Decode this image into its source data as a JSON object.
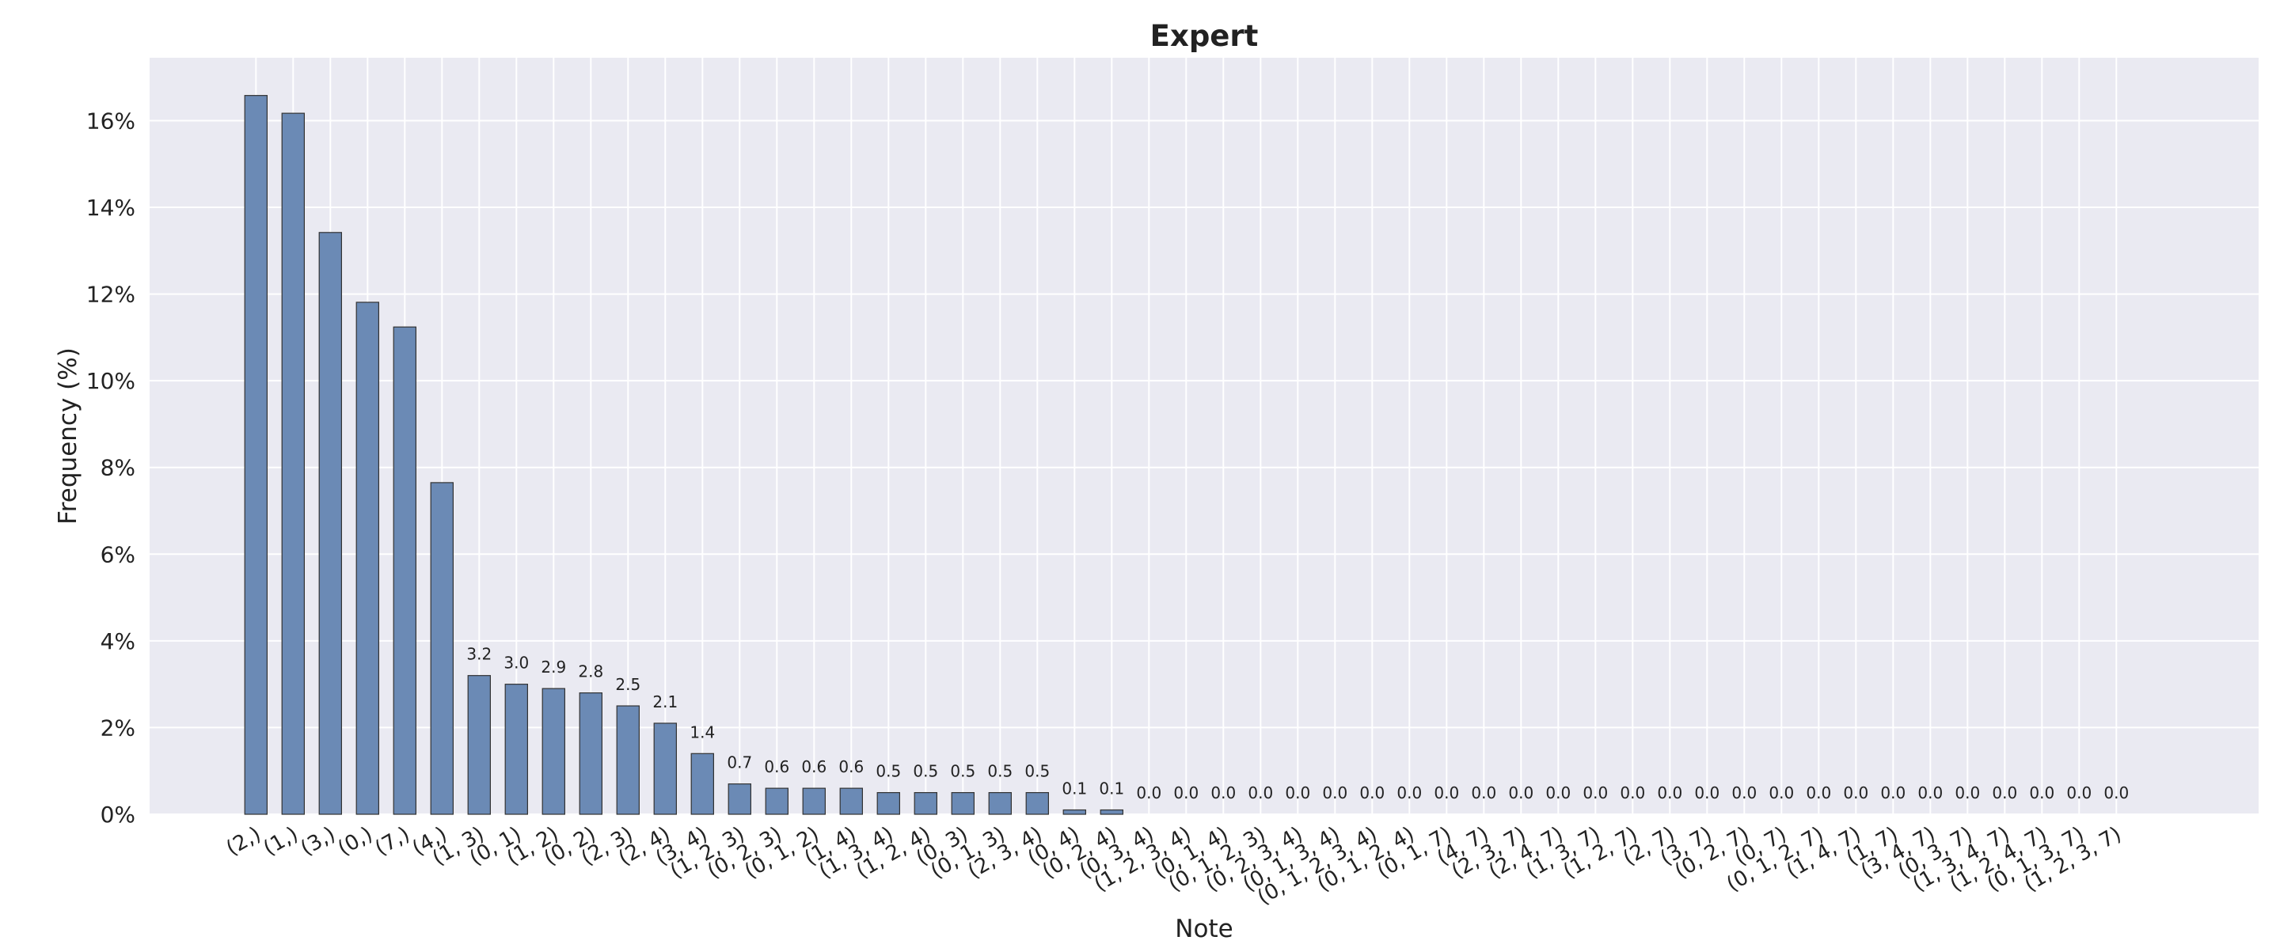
{
  "chart_data": {
    "type": "bar",
    "title": "Expert",
    "x_label": "Note",
    "y_label": "Frequency (%)",
    "categories": [
      "(2,)",
      "(1,)",
      "(3,)",
      "(0,)",
      "(7,)",
      "(4,)",
      "(1, 3)",
      "(0, 1)",
      "(1, 2)",
      "(0, 2)",
      "(2, 3)",
      "(2, 4)",
      "(3, 4)",
      "(1, 2, 3)",
      "(0, 2, 3)",
      "(0, 1, 2)",
      "(1, 4)",
      "(1, 3, 4)",
      "(1, 2, 4)",
      "(0, 3)",
      "(0, 1, 3)",
      "(2, 3, 4)",
      "(0, 4)",
      "(0, 2, 4)",
      "(0, 3, 4)",
      "(1, 2, 3, 4)",
      "(0, 1, 4)",
      "(0, 1, 2, 3)",
      "(0, 2, 3, 4)",
      "(0, 1, 3, 4)",
      "(0, 1, 2, 3, 4)",
      "(0, 1, 2, 4)",
      "(0, 1, 7)",
      "(4, 7)",
      "(2, 3, 7)",
      "(2, 4, 7)",
      "(1, 3, 7)",
      "(1, 2, 7)",
      "(2, 7)",
      "(3, 7)",
      "(0, 2, 7)",
      "(0, 7)",
      "(0, 1, 2, 7)",
      "(1, 4, 7)",
      "(1, 7)",
      "(3, 4, 7)",
      "(0, 3, 7)",
      "(1, 3, 4, 7)",
      "(1, 2, 4, 7)",
      "(0, 1, 3, 7)",
      "(1, 2, 3, 7)"
    ],
    "values": [
      16.58,
      16.17,
      13.42,
      11.81,
      11.24,
      7.65,
      3.2,
      3.0,
      2.9,
      2.8,
      2.5,
      2.1,
      1.4,
      0.7,
      0.6,
      0.6,
      0.6,
      0.5,
      0.5,
      0.5,
      0.5,
      0.5,
      0.1,
      0.1,
      0,
      0,
      0,
      0,
      0,
      0,
      0,
      0,
      0,
      0,
      0,
      0,
      0,
      0,
      0,
      0,
      0,
      0,
      0,
      0,
      0,
      0,
      0,
      0,
      0,
      0,
      0
    ],
    "value_labels": [
      null,
      null,
      null,
      null,
      null,
      null,
      "3.2",
      "3.0",
      "2.9",
      "2.8",
      "2.5",
      "2.1",
      "1.4",
      "0.7",
      "0.6",
      "0.6",
      "0.6",
      "0.5",
      "0.5",
      "0.5",
      "0.5",
      "0.5",
      "0.1",
      "0.1",
      "0.0",
      "0.0",
      "0.0",
      "0.0",
      "0.0",
      "0.0",
      "0.0",
      "0.0",
      "0.0",
      "0.0",
      "0.0",
      "0.0",
      "0.0",
      "0.0",
      "0.0",
      "0.0",
      "0.0",
      "0.0",
      "0.0",
      "0.0",
      "0.0",
      "0.0",
      "0.0",
      "0.0",
      "0.0",
      "0.0",
      "0.0"
    ],
    "color": "#6b8ab5",
    "edge_color": "#333333",
    "background": "#eaeaf2",
    "grid": true,
    "ylim": [
      0,
      17.45
    ],
    "yticks": [
      {
        "value": 0,
        "label": "0%"
      },
      {
        "value": 2,
        "label": "2%"
      },
      {
        "value": 4,
        "label": "4%"
      },
      {
        "value": 6,
        "label": "6%"
      },
      {
        "value": 8,
        "label": "8%"
      },
      {
        "value": 10,
        "label": "10%"
      },
      {
        "value": 12,
        "label": "12%"
      },
      {
        "value": 14,
        "label": "14%"
      },
      {
        "value": 16,
        "label": "16%"
      }
    ]
  }
}
